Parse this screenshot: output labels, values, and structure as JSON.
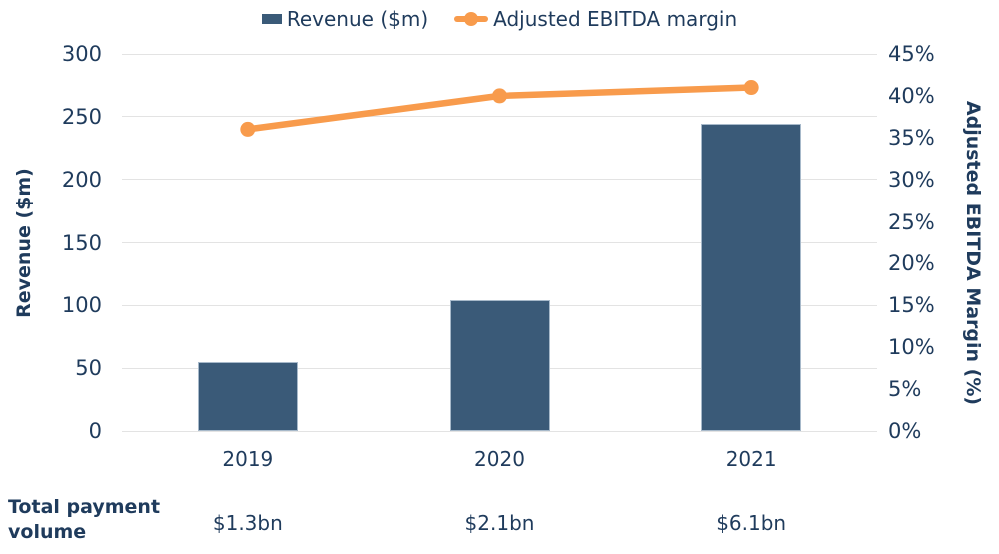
{
  "colors": {
    "navy_text": "#1f3b5c",
    "bar_fill": "#3a5a78",
    "bar_border": "#a7b9ca",
    "line_orange": "#f89b4c",
    "gridline": "#e3e3e3"
  },
  "legend": {
    "revenue_label": "Revenue ($m)",
    "margin_label": "Adjusted EBITDA margin"
  },
  "chart_data": {
    "type": "combo-bar-line",
    "categories": [
      "2019",
      "2020",
      "2021"
    ],
    "series": [
      {
        "name": "Revenue ($m)",
        "type": "bar",
        "axis": "left",
        "values": [
          55,
          104,
          244
        ]
      },
      {
        "name": "Adjusted EBITDA margin",
        "type": "line",
        "axis": "right",
        "unit": "%",
        "values": [
          36,
          40,
          41
        ]
      }
    ],
    "left_axis": {
      "title": "Revenue ($m)",
      "min": 0,
      "max": 300,
      "step": 50,
      "tick_labels": [
        "0",
        "50",
        "100",
        "150",
        "200",
        "250",
        "300"
      ]
    },
    "right_axis": {
      "title": "Adjusted EBITDA Margin (%)",
      "min": 0,
      "max": 45,
      "step": 5,
      "tick_labels": [
        "0%",
        "5%",
        "10%",
        "15%",
        "20%",
        "25%",
        "30%",
        "35%",
        "40%",
        "45%"
      ]
    },
    "grid": true,
    "legend_position": "top"
  },
  "footer": {
    "label": "Total payment volume",
    "values": [
      "$1.3bn",
      "$2.1bn",
      "$6.1bn"
    ]
  }
}
